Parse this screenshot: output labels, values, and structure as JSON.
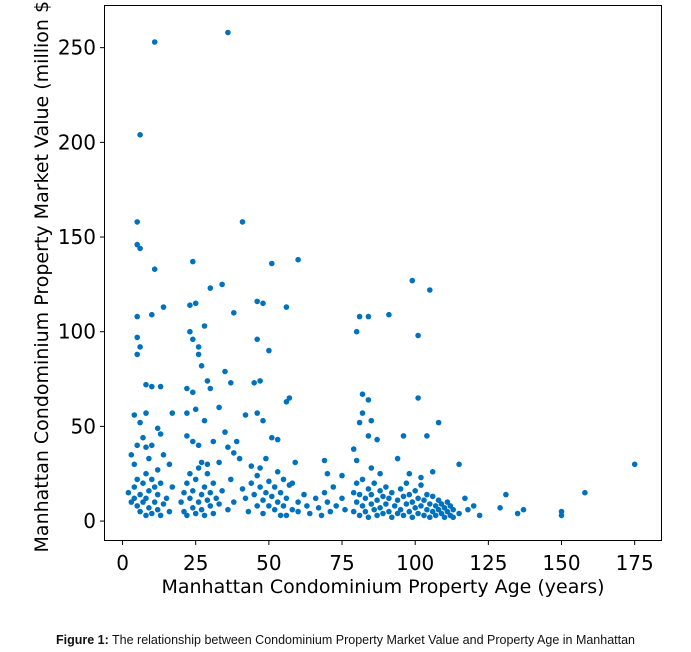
{
  "caption": {
    "label": "Figure 1:",
    "text": "The relationship between Condominium Property Market Value and Property Age in Manhattan"
  },
  "colors": {
    "marker": "#0072BD"
  },
  "chart_data": {
    "type": "scatter",
    "title": "",
    "xlabel": "Manhattan Condominium Property Age (years)",
    "ylabel": "Manhattan Condominium Property Market Value (million $)",
    "xlim": [
      -6,
      184
    ],
    "ylim": [
      -10,
      272
    ],
    "xticks": [
      0,
      25,
      50,
      75,
      100,
      125,
      150,
      175
    ],
    "yticks": [
      0,
      50,
      100,
      150,
      200,
      250
    ],
    "grid": false,
    "legend": "none",
    "points": [
      [
        11,
        253
      ],
      [
        36,
        258
      ],
      [
        6,
        204
      ],
      [
        5,
        158
      ],
      [
        41,
        158
      ],
      [
        5,
        146
      ],
      [
        6,
        144
      ],
      [
        11,
        133
      ],
      [
        24,
        137
      ],
      [
        51,
        136
      ],
      [
        60,
        138
      ],
      [
        14,
        113
      ],
      [
        5,
        108
      ],
      [
        10,
        109
      ],
      [
        23,
        114
      ],
      [
        25,
        115
      ],
      [
        30,
        123
      ],
      [
        34,
        125
      ],
      [
        38,
        110
      ],
      [
        46,
        116
      ],
      [
        48,
        115
      ],
      [
        56,
        113
      ],
      [
        99,
        127
      ],
      [
        105,
        122
      ],
      [
        81,
        108
      ],
      [
        84,
        108
      ],
      [
        91,
        109
      ],
      [
        80,
        100
      ],
      [
        101,
        98
      ],
      [
        5,
        97
      ],
      [
        6,
        92
      ],
      [
        5,
        88
      ],
      [
        8,
        72
      ],
      [
        10,
        71
      ],
      [
        13,
        71
      ],
      [
        22,
        70
      ],
      [
        24,
        68
      ],
      [
        27,
        82
      ],
      [
        26,
        88
      ],
      [
        29,
        74
      ],
      [
        30,
        70
      ],
      [
        23,
        100
      ],
      [
        24,
        96
      ],
      [
        28,
        103
      ],
      [
        26,
        92
      ],
      [
        35,
        79
      ],
      [
        37,
        73
      ],
      [
        46,
        96
      ],
      [
        45,
        73
      ],
      [
        47,
        74
      ],
      [
        50,
        90
      ],
      [
        57,
        65
      ],
      [
        56,
        63
      ],
      [
        82,
        67
      ],
      [
        84,
        64
      ],
      [
        101,
        65
      ],
      [
        82,
        57
      ],
      [
        85,
        53
      ],
      [
        81,
        52
      ],
      [
        84,
        45
      ],
      [
        87,
        43
      ],
      [
        96,
        45
      ],
      [
        104,
        45
      ],
      [
        108,
        52
      ],
      [
        4,
        56
      ],
      [
        6,
        52
      ],
      [
        8,
        57
      ],
      [
        12,
        49
      ],
      [
        13,
        46
      ],
      [
        17,
        57
      ],
      [
        22,
        57
      ],
      [
        25,
        59
      ],
      [
        28,
        53
      ],
      [
        33,
        60
      ],
      [
        35,
        47
      ],
      [
        39,
        42
      ],
      [
        42,
        56
      ],
      [
        46,
        57
      ],
      [
        48,
        53
      ],
      [
        51,
        44
      ],
      [
        53,
        43
      ],
      [
        59,
        31
      ],
      [
        58,
        20
      ],
      [
        3,
        35
      ],
      [
        4,
        30
      ],
      [
        5,
        40
      ],
      [
        7,
        44
      ],
      [
        8,
        39
      ],
      [
        9,
        33
      ],
      [
        10,
        40
      ],
      [
        12,
        27
      ],
      [
        14,
        35
      ],
      [
        16,
        30
      ],
      [
        22,
        45
      ],
      [
        24,
        42
      ],
      [
        26,
        40
      ],
      [
        27,
        31
      ],
      [
        29,
        30
      ],
      [
        31,
        42
      ],
      [
        33,
        31
      ],
      [
        36,
        39
      ],
      [
        38,
        36
      ],
      [
        40,
        33
      ],
      [
        44,
        29
      ],
      [
        47,
        28
      ],
      [
        49,
        33
      ],
      [
        53,
        26
      ],
      [
        55,
        22
      ],
      [
        69,
        32
      ],
      [
        70,
        25
      ],
      [
        75,
        24
      ],
      [
        79,
        38
      ],
      [
        80,
        32
      ],
      [
        85,
        28
      ],
      [
        88,
        25
      ],
      [
        94,
        33
      ],
      [
        98,
        25
      ],
      [
        102,
        23
      ],
      [
        106,
        26
      ],
      [
        115,
        30
      ],
      [
        131,
        14
      ],
      [
        158,
        15
      ],
      [
        175,
        30
      ],
      [
        2,
        15
      ],
      [
        3,
        10
      ],
      [
        4,
        12
      ],
      [
        4,
        18
      ],
      [
        5,
        8
      ],
      [
        5,
        22
      ],
      [
        6,
        5
      ],
      [
        6,
        14
      ],
      [
        7,
        10
      ],
      [
        7,
        20
      ],
      [
        8,
        3
      ],
      [
        8,
        12
      ],
      [
        8,
        25
      ],
      [
        9,
        7
      ],
      [
        9,
        16
      ],
      [
        10,
        4
      ],
      [
        10,
        22
      ],
      [
        11,
        10
      ],
      [
        11,
        18
      ],
      [
        12,
        6
      ],
      [
        12,
        14
      ],
      [
        13,
        3
      ],
      [
        13,
        20
      ],
      [
        14,
        9
      ],
      [
        15,
        12
      ],
      [
        16,
        5
      ],
      [
        17,
        18
      ],
      [
        20,
        10
      ],
      [
        21,
        15
      ],
      [
        21,
        5
      ],
      [
        22,
        20
      ],
      [
        22,
        3
      ],
      [
        23,
        12
      ],
      [
        23,
        25
      ],
      [
        24,
        7
      ],
      [
        24,
        16
      ],
      [
        25,
        4
      ],
      [
        25,
        22
      ],
      [
        26,
        10
      ],
      [
        26,
        28
      ],
      [
        27,
        6
      ],
      [
        27,
        14
      ],
      [
        28,
        18
      ],
      [
        28,
        3
      ],
      [
        29,
        11
      ],
      [
        29,
        25
      ],
      [
        30,
        8
      ],
      [
        30,
        15
      ],
      [
        31,
        20
      ],
      [
        31,
        4
      ],
      [
        32,
        12
      ],
      [
        33,
        9
      ],
      [
        34,
        16
      ],
      [
        36,
        6
      ],
      [
        37,
        22
      ],
      [
        38,
        10
      ],
      [
        41,
        17
      ],
      [
        42,
        12
      ],
      [
        43,
        5
      ],
      [
        44,
        20
      ],
      [
        45,
        14
      ],
      [
        46,
        8
      ],
      [
        46,
        24
      ],
      [
        47,
        18
      ],
      [
        48,
        11
      ],
      [
        48,
        4
      ],
      [
        49,
        15
      ],
      [
        50,
        21
      ],
      [
        50,
        8
      ],
      [
        51,
        13
      ],
      [
        52,
        6
      ],
      [
        52,
        18
      ],
      [
        53,
        10
      ],
      [
        54,
        3
      ],
      [
        54,
        15
      ],
      [
        55,
        8
      ],
      [
        56,
        12
      ],
      [
        56,
        3
      ],
      [
        57,
        19
      ],
      [
        58,
        6
      ],
      [
        60,
        10
      ],
      [
        60,
        5
      ],
      [
        62,
        14
      ],
      [
        63,
        8
      ],
      [
        64,
        4
      ],
      [
        66,
        12
      ],
      [
        67,
        7
      ],
      [
        68,
        3
      ],
      [
        69,
        15
      ],
      [
        70,
        10
      ],
      [
        71,
        5
      ],
      [
        72,
        18
      ],
      [
        73,
        8
      ],
      [
        75,
        12
      ],
      [
        76,
        6
      ],
      [
        79,
        15
      ],
      [
        79,
        5
      ],
      [
        80,
        20
      ],
      [
        80,
        10
      ],
      [
        81,
        3
      ],
      [
        81,
        14
      ],
      [
        82,
        8
      ],
      [
        82,
        22
      ],
      [
        83,
        12
      ],
      [
        83,
        5
      ],
      [
        84,
        17
      ],
      [
        84,
        2
      ],
      [
        85,
        9
      ],
      [
        85,
        14
      ],
      [
        86,
        6
      ],
      [
        86,
        20
      ],
      [
        87,
        3
      ],
      [
        87,
        11
      ],
      [
        88,
        16
      ],
      [
        88,
        7
      ],
      [
        89,
        4
      ],
      [
        89,
        13
      ],
      [
        90,
        9
      ],
      [
        90,
        18
      ],
      [
        91,
        5
      ],
      [
        91,
        12
      ],
      [
        92,
        2
      ],
      [
        92,
        15
      ],
      [
        93,
        8
      ],
      [
        94,
        4
      ],
      [
        94,
        11
      ],
      [
        95,
        17
      ],
      [
        95,
        6
      ],
      [
        96,
        13
      ],
      [
        96,
        3
      ],
      [
        97,
        9
      ],
      [
        97,
        20
      ],
      [
        98,
        5
      ],
      [
        98,
        14
      ],
      [
        99,
        2
      ],
      [
        99,
        10
      ],
      [
        100,
        7
      ],
      [
        100,
        16
      ],
      [
        101,
        4
      ],
      [
        101,
        12
      ],
      [
        102,
        8
      ],
      [
        102,
        19
      ],
      [
        103,
        3
      ],
      [
        103,
        11
      ],
      [
        104,
        6
      ],
      [
        104,
        14
      ],
      [
        105,
        9
      ],
      [
        105,
        2
      ],
      [
        106,
        5
      ],
      [
        106,
        13
      ],
      [
        107,
        8
      ],
      [
        107,
        3
      ],
      [
        108,
        11
      ],
      [
        108,
        6
      ],
      [
        109,
        4
      ],
      [
        109,
        9
      ],
      [
        110,
        7
      ],
      [
        110,
        2
      ],
      [
        111,
        5
      ],
      [
        111,
        10
      ],
      [
        112,
        3
      ],
      [
        112,
        8
      ],
      [
        113,
        2
      ],
      [
        113,
        6
      ],
      [
        115,
        4
      ],
      [
        117,
        12
      ],
      [
        118,
        6
      ],
      [
        120,
        8
      ],
      [
        122,
        3
      ],
      [
        129,
        7
      ],
      [
        135,
        4
      ],
      [
        137,
        6
      ],
      [
        150,
        5
      ],
      [
        150,
        3
      ]
    ]
  }
}
